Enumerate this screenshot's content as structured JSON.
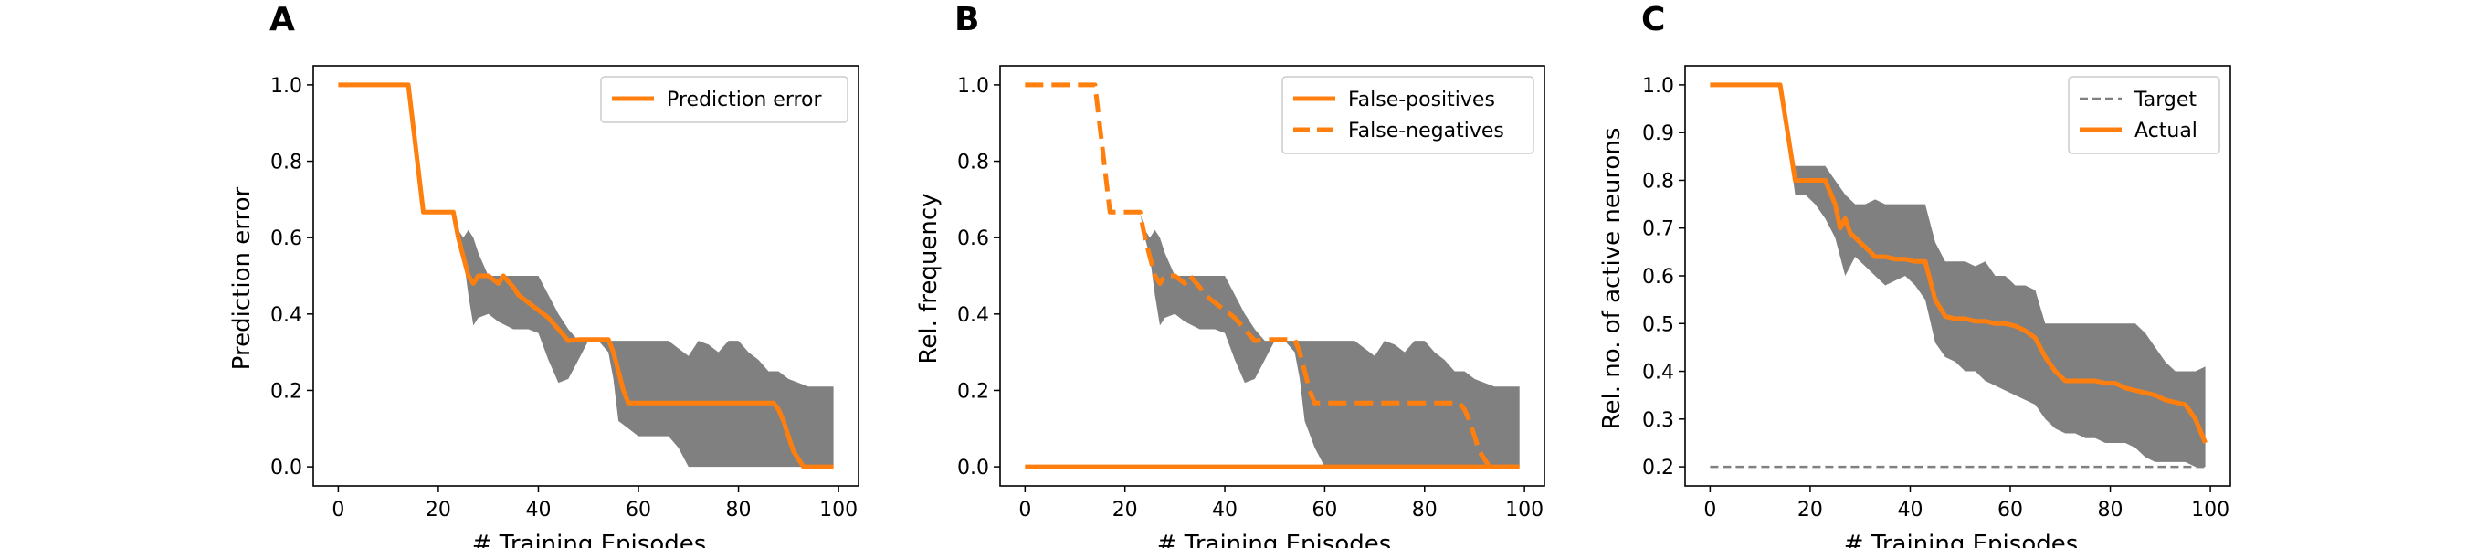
{
  "colors": {
    "line": "#ff7f0e",
    "band": "#808080",
    "target": "#808080"
  },
  "chart_data": [
    {
      "type": "line",
      "panel_label": "A",
      "xlabel": "# Training Episodes",
      "ylabel": "Prediction error",
      "xlim": [
        -5,
        104
      ],
      "ylim": [
        -0.05,
        1.05
      ],
      "xticks": [
        0,
        20,
        40,
        60,
        80,
        100
      ],
      "yticks": [
        0.0,
        0.2,
        0.4,
        0.6,
        0.8,
        1.0
      ],
      "ytick_labels": [
        "0.0",
        "0.2",
        "0.4",
        "0.6",
        "0.8",
        "1.0"
      ],
      "legend_position": "upper right",
      "band": {
        "x": [
          0,
          14,
          17,
          23,
          24,
          25,
          26,
          27,
          28,
          30,
          32,
          35,
          38,
          40,
          42,
          44,
          46,
          48,
          50,
          52,
          54,
          55,
          56,
          58,
          60,
          62,
          64,
          66,
          68,
          70,
          72,
          74,
          76,
          78,
          80,
          82,
          84,
          86,
          88,
          90,
          92,
          94,
          99
        ],
        "upper": [
          1.0,
          1.0,
          0.667,
          0.667,
          0.62,
          0.6,
          0.62,
          0.6,
          0.56,
          0.5,
          0.5,
          0.5,
          0.5,
          0.5,
          0.45,
          0.4,
          0.36,
          0.33,
          0.33,
          0.33,
          0.33,
          0.33,
          0.33,
          0.33,
          0.33,
          0.33,
          0.33,
          0.33,
          0.31,
          0.29,
          0.33,
          0.32,
          0.3,
          0.33,
          0.33,
          0.3,
          0.28,
          0.25,
          0.25,
          0.23,
          0.22,
          0.21,
          0.21
        ],
        "lower": [
          1.0,
          1.0,
          0.667,
          0.667,
          0.6,
          0.55,
          0.45,
          0.37,
          0.39,
          0.4,
          0.38,
          0.36,
          0.36,
          0.35,
          0.28,
          0.22,
          0.23,
          0.28,
          0.33,
          0.33,
          0.3,
          0.23,
          0.12,
          0.1,
          0.08,
          0.08,
          0.08,
          0.08,
          0.05,
          0.0,
          0.0,
          0.0,
          0.0,
          0.0,
          0.0,
          0.0,
          0.0,
          0.0,
          0.0,
          0.0,
          0.0,
          0.0,
          0.0
        ]
      },
      "series": [
        {
          "name": "Prediction error",
          "style": "solid",
          "x": [
            0,
            14,
            17,
            23,
            24,
            25,
            26,
            27,
            28,
            30,
            32,
            33,
            35,
            36,
            38,
            40,
            42,
            44,
            46,
            48,
            50,
            52,
            54,
            55,
            56,
            57,
            58,
            60,
            65,
            70,
            75,
            80,
            85,
            87,
            88,
            89,
            90,
            91,
            92,
            93,
            95,
            99
          ],
          "y": [
            1.0,
            1.0,
            0.667,
            0.667,
            0.6,
            0.55,
            0.5,
            0.48,
            0.5,
            0.5,
            0.48,
            0.5,
            0.47,
            0.45,
            0.43,
            0.41,
            0.39,
            0.36,
            0.33,
            0.333,
            0.333,
            0.333,
            0.333,
            0.3,
            0.25,
            0.2,
            0.167,
            0.167,
            0.167,
            0.167,
            0.167,
            0.167,
            0.167,
            0.167,
            0.15,
            0.12,
            0.08,
            0.04,
            0.02,
            0.0,
            0.0,
            0.0
          ]
        }
      ]
    },
    {
      "type": "line",
      "panel_label": "B",
      "xlabel": "# Training Episodes",
      "ylabel": "Rel. frequency",
      "xlim": [
        -5,
        104
      ],
      "ylim": [
        -0.05,
        1.05
      ],
      "xticks": [
        0,
        20,
        40,
        60,
        80,
        100
      ],
      "yticks": [
        0.0,
        0.2,
        0.4,
        0.6,
        0.8,
        1.0
      ],
      "ytick_labels": [
        "0.0",
        "0.2",
        "0.4",
        "0.6",
        "0.8",
        "1.0"
      ],
      "legend_position": "upper right",
      "band": {
        "x": [
          0,
          14,
          17,
          23,
          24,
          25,
          26,
          27,
          28,
          30,
          32,
          35,
          38,
          40,
          42,
          44,
          46,
          48,
          50,
          52,
          54,
          55,
          56,
          58,
          60,
          62,
          64,
          66,
          68,
          70,
          72,
          74,
          76,
          78,
          80,
          82,
          84,
          86,
          88,
          90,
          92,
          94,
          99
        ],
        "upper": [
          1.0,
          1.0,
          0.667,
          0.667,
          0.62,
          0.6,
          0.62,
          0.6,
          0.56,
          0.5,
          0.5,
          0.5,
          0.5,
          0.5,
          0.45,
          0.4,
          0.36,
          0.33,
          0.33,
          0.33,
          0.33,
          0.33,
          0.33,
          0.33,
          0.33,
          0.33,
          0.33,
          0.33,
          0.31,
          0.29,
          0.33,
          0.32,
          0.3,
          0.33,
          0.33,
          0.3,
          0.28,
          0.25,
          0.25,
          0.23,
          0.22,
          0.21,
          0.21
        ],
        "lower": [
          1.0,
          1.0,
          0.667,
          0.667,
          0.6,
          0.55,
          0.45,
          0.37,
          0.39,
          0.4,
          0.38,
          0.36,
          0.36,
          0.35,
          0.28,
          0.22,
          0.23,
          0.28,
          0.33,
          0.33,
          0.3,
          0.23,
          0.12,
          0.05,
          0.0,
          0.0,
          0.0,
          0.0,
          0.0,
          0.0,
          0.0,
          0.0,
          0.0,
          0.0,
          0.0,
          0.0,
          0.0,
          0.0,
          0.0,
          0.0,
          0.0,
          0.0,
          0.0
        ]
      },
      "series": [
        {
          "name": "False-positives",
          "style": "solid",
          "x": [
            0,
            99
          ],
          "y": [
            0.0,
            0.0
          ]
        },
        {
          "name": "False-negatives",
          "style": "dashed",
          "x": [
            0,
            14,
            17,
            23,
            24,
            25,
            26,
            27,
            28,
            30,
            32,
            33,
            35,
            36,
            38,
            40,
            42,
            44,
            46,
            48,
            50,
            52,
            54,
            55,
            56,
            57,
            58,
            60,
            65,
            70,
            75,
            80,
            85,
            87,
            88,
            89,
            90,
            91,
            92,
            93,
            95,
            99
          ],
          "y": [
            1.0,
            1.0,
            0.667,
            0.667,
            0.6,
            0.55,
            0.5,
            0.48,
            0.5,
            0.5,
            0.48,
            0.5,
            0.47,
            0.45,
            0.43,
            0.41,
            0.39,
            0.36,
            0.33,
            0.333,
            0.333,
            0.333,
            0.333,
            0.3,
            0.25,
            0.2,
            0.167,
            0.167,
            0.167,
            0.167,
            0.167,
            0.167,
            0.167,
            0.167,
            0.15,
            0.12,
            0.08,
            0.04,
            0.02,
            0.0,
            0.0,
            0.0
          ]
        }
      ]
    },
    {
      "type": "line",
      "panel_label": "C",
      "xlabel": "# Training Episodes",
      "ylabel": "Rel. no. of active neurons",
      "xlim": [
        -5,
        104
      ],
      "ylim": [
        0.16,
        1.04
      ],
      "xticks": [
        0,
        20,
        40,
        60,
        80,
        100
      ],
      "yticks": [
        0.2,
        0.3,
        0.4,
        0.5,
        0.6,
        0.7,
        0.8,
        0.9,
        1.0
      ],
      "ytick_labels": [
        "0.2",
        "0.3",
        "0.4",
        "0.5",
        "0.6",
        "0.7",
        "0.8",
        "0.9",
        "1.0"
      ],
      "legend_position": "upper right",
      "band": {
        "x": [
          0,
          14,
          17,
          19,
          21,
          23,
          25,
          27,
          29,
          31,
          33,
          35,
          37,
          39,
          41,
          43,
          45,
          47,
          49,
          51,
          53,
          55,
          57,
          59,
          61,
          63,
          65,
          67,
          69,
          71,
          73,
          75,
          77,
          79,
          81,
          83,
          85,
          87,
          89,
          91,
          93,
          95,
          97,
          99
        ],
        "upper": [
          1.0,
          1.0,
          0.83,
          0.83,
          0.83,
          0.83,
          0.8,
          0.77,
          0.75,
          0.75,
          0.76,
          0.75,
          0.75,
          0.75,
          0.75,
          0.75,
          0.67,
          0.63,
          0.63,
          0.63,
          0.62,
          0.63,
          0.6,
          0.6,
          0.58,
          0.58,
          0.57,
          0.5,
          0.5,
          0.5,
          0.5,
          0.5,
          0.5,
          0.5,
          0.5,
          0.5,
          0.5,
          0.48,
          0.45,
          0.42,
          0.4,
          0.4,
          0.4,
          0.41
        ],
        "lower": [
          1.0,
          1.0,
          0.77,
          0.77,
          0.75,
          0.72,
          0.68,
          0.6,
          0.64,
          0.62,
          0.6,
          0.58,
          0.59,
          0.6,
          0.58,
          0.55,
          0.46,
          0.43,
          0.42,
          0.4,
          0.4,
          0.38,
          0.37,
          0.36,
          0.35,
          0.34,
          0.33,
          0.3,
          0.28,
          0.27,
          0.27,
          0.26,
          0.26,
          0.25,
          0.25,
          0.25,
          0.24,
          0.22,
          0.21,
          0.21,
          0.21,
          0.21,
          0.2,
          0.2
        ]
      },
      "series": [
        {
          "name": "Target",
          "style": "dashed",
          "x": [
            0,
            99
          ],
          "y": [
            0.2,
            0.2
          ]
        },
        {
          "name": "Actual",
          "style": "solid",
          "x": [
            0,
            14,
            17,
            19,
            21,
            23,
            25,
            26,
            27,
            28,
            29,
            30,
            31,
            33,
            35,
            37,
            39,
            41,
            43,
            45,
            47,
            49,
            51,
            53,
            55,
            57,
            59,
            61,
            63,
            65,
            67,
            69,
            71,
            73,
            75,
            77,
            79,
            81,
            83,
            85,
            87,
            89,
            91,
            93,
            95,
            97,
            99
          ],
          "y": [
            1.0,
            1.0,
            0.8,
            0.8,
            0.8,
            0.8,
            0.75,
            0.7,
            0.72,
            0.69,
            0.68,
            0.67,
            0.66,
            0.64,
            0.64,
            0.635,
            0.635,
            0.63,
            0.63,
            0.55,
            0.515,
            0.51,
            0.51,
            0.505,
            0.505,
            0.5,
            0.5,
            0.495,
            0.485,
            0.47,
            0.43,
            0.4,
            0.38,
            0.38,
            0.38,
            0.38,
            0.375,
            0.375,
            0.365,
            0.36,
            0.355,
            0.35,
            0.34,
            0.335,
            0.33,
            0.3,
            0.25
          ]
        }
      ]
    }
  ]
}
